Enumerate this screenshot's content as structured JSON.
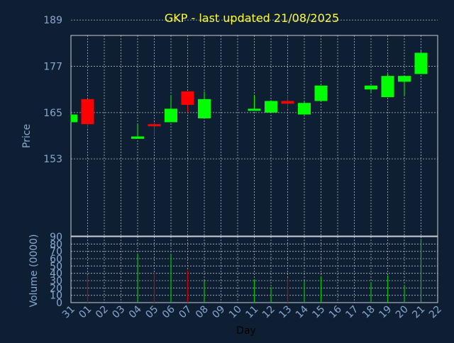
{
  "chart_data": [
    {
      "type": "candlestick",
      "title": "GKP - last updated 21/08/2025",
      "ylabel": "Price",
      "ylim": [
        133,
        185
      ],
      "yticks": [
        153,
        165,
        177,
        189
      ],
      "grid": true,
      "categories": [
        "31",
        "01",
        "02",
        "03",
        "04",
        "05",
        "06",
        "07",
        "08",
        "09",
        "10",
        "11",
        "12",
        "13",
        "14",
        "15",
        "16",
        "17",
        "18",
        "19",
        "20",
        "21",
        "22"
      ],
      "candles": [
        {
          "day": "31",
          "open": 162.5,
          "high": 164.5,
          "low": 162.5,
          "close": 164.5,
          "dir": "up"
        },
        {
          "day": "01",
          "open": 168.5,
          "high": 168.5,
          "low": 161.0,
          "close": 162.0,
          "dir": "down"
        },
        {
          "day": "04",
          "open": 158.2,
          "high": 162.0,
          "low": 158.2,
          "close": 158.8,
          "dir": "up"
        },
        {
          "day": "05",
          "open": 162.0,
          "high": 162.5,
          "low": 159.0,
          "close": 161.5,
          "dir": "down"
        },
        {
          "day": "06",
          "open": 162.5,
          "high": 169.5,
          "low": 162.5,
          "close": 166.0,
          "dir": "up"
        },
        {
          "day": "07",
          "open": 170.5,
          "high": 170.5,
          "low": 165.0,
          "close": 167.0,
          "dir": "down"
        },
        {
          "day": "08",
          "open": 163.5,
          "high": 170.5,
          "low": 163.5,
          "close": 168.5,
          "dir": "up"
        },
        {
          "day": "11",
          "open": 165.5,
          "high": 169.5,
          "low": 165.5,
          "close": 166.0,
          "dir": "up"
        },
        {
          "day": "12",
          "open": 165.0,
          "high": 168.2,
          "low": 165.0,
          "close": 168.0,
          "dir": "up"
        },
        {
          "day": "13",
          "open": 168.0,
          "high": 169.5,
          "low": 166.0,
          "close": 167.3,
          "dir": "down"
        },
        {
          "day": "14",
          "open": 164.5,
          "high": 168.0,
          "low": 164.5,
          "close": 167.5,
          "dir": "up"
        },
        {
          "day": "15",
          "open": 168.0,
          "high": 172.0,
          "low": 168.0,
          "close": 172.0,
          "dir": "up"
        },
        {
          "day": "18",
          "open": 171.0,
          "high": 172.0,
          "low": 170.0,
          "close": 172.0,
          "dir": "up"
        },
        {
          "day": "19",
          "open": 169.0,
          "high": 175.0,
          "low": 169.0,
          "close": 174.5,
          "dir": "up"
        },
        {
          "day": "20",
          "open": 173.0,
          "high": 174.5,
          "low": 169.5,
          "close": 174.5,
          "dir": "up"
        },
        {
          "day": "21",
          "open": 175.0,
          "high": 181.0,
          "low": 175.0,
          "close": 180.5,
          "dir": "up"
        }
      ]
    },
    {
      "type": "bar",
      "ylabel": "Volume (0000)",
      "xlabel": "Day",
      "ylim": [
        0,
        90
      ],
      "yticks": [
        0,
        10,
        20,
        30,
        40,
        50,
        60,
        70,
        80,
        90
      ],
      "categories": [
        "31",
        "01",
        "02",
        "03",
        "04",
        "05",
        "06",
        "07",
        "08",
        "09",
        "10",
        "11",
        "12",
        "13",
        "14",
        "15",
        "16",
        "17",
        "18",
        "19",
        "20",
        "21",
        "22"
      ],
      "bars": [
        {
          "day": "01",
          "value": 38,
          "dir": "down"
        },
        {
          "day": "04",
          "value": 67,
          "dir": "up"
        },
        {
          "day": "05",
          "value": 41,
          "dir": "down"
        },
        {
          "day": "06",
          "value": 65,
          "dir": "up"
        },
        {
          "day": "07",
          "value": 44,
          "dir": "down"
        },
        {
          "day": "08",
          "value": 30,
          "dir": "up"
        },
        {
          "day": "11",
          "value": 32,
          "dir": "up"
        },
        {
          "day": "12",
          "value": 21,
          "dir": "up"
        },
        {
          "day": "13",
          "value": 34,
          "dir": "down"
        },
        {
          "day": "14",
          "value": 30,
          "dir": "up"
        },
        {
          "day": "15",
          "value": 36,
          "dir": "up"
        },
        {
          "day": "18",
          "value": 28,
          "dir": "up"
        },
        {
          "day": "19",
          "value": 37,
          "dir": "up"
        },
        {
          "day": "20",
          "value": 24,
          "dir": "up"
        },
        {
          "day": "21",
          "value": 87,
          "dir": "up"
        }
      ]
    }
  ],
  "colors": {
    "background": "#0f1f33",
    "title": "#ffff33",
    "axis_text": "#87a9d0",
    "grid": "#b0b8c4",
    "frame": "#c8d0d8",
    "up": "#00ff00",
    "down": "#ff0000",
    "wick_up": "#00ff00",
    "wick_down": "#ff0000",
    "vol_up": "#00c800",
    "vol_down": "#c80000"
  }
}
